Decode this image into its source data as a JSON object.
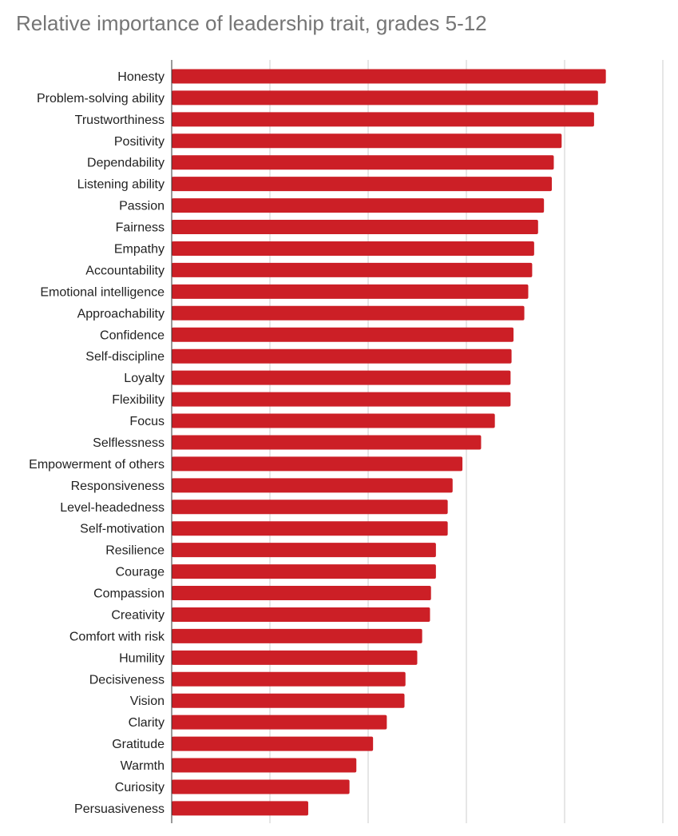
{
  "chart_data": {
    "type": "bar",
    "orientation": "horizontal",
    "title": "Relative importance of leadership trait, grades 5-12",
    "xlabel": "",
    "ylabel": "",
    "xlim": [
      0,
      5
    ],
    "x_gridlines": [
      0,
      1,
      2,
      3,
      4,
      5
    ],
    "x_tick_labels_shown": false,
    "bar_color": "#cc1f26",
    "gridline_color": "#cccccc",
    "categories": [
      "Honesty",
      "Problem-solving ability",
      "Trustworthiness",
      "Positivity",
      "Dependability",
      "Listening ability",
      "Passion",
      "Fairness",
      "Empathy",
      "Accountability",
      "Emotional intelligence",
      "Approachability",
      "Confidence",
      "Self-discipline",
      "Loyalty",
      "Flexibility",
      "Focus",
      "Selflessness",
      "Empowerment of others",
      "Responsiveness",
      "Level-headedness",
      "Self-motivation",
      "Resilience",
      "Courage",
      "Compassion",
      "Creativity",
      "Comfort with risk",
      "Humility",
      "Decisiveness",
      "Vision",
      "Clarity",
      "Gratitude",
      "Warmth",
      "Curiosity",
      "Persuasiveness"
    ],
    "values": [
      4.42,
      4.34,
      4.3,
      3.97,
      3.89,
      3.87,
      3.79,
      3.73,
      3.69,
      3.67,
      3.63,
      3.59,
      3.48,
      3.46,
      3.45,
      3.45,
      3.29,
      3.15,
      2.96,
      2.86,
      2.81,
      2.81,
      2.69,
      2.69,
      2.64,
      2.63,
      2.55,
      2.5,
      2.38,
      2.37,
      2.19,
      2.05,
      1.88,
      1.81,
      1.39
    ]
  }
}
